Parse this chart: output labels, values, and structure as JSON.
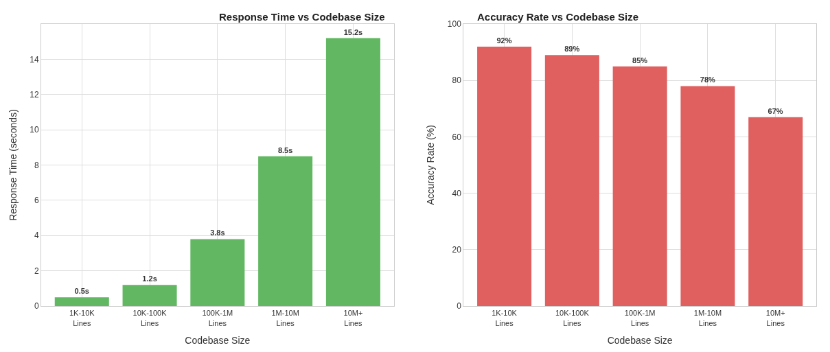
{
  "chart_data": [
    {
      "type": "bar",
      "title": "Response Time vs Codebase Size",
      "xlabel": "Codebase Size",
      "ylabel": "Response Time (seconds)",
      "categories": [
        "1K-10K\nLines",
        "10K-100K\nLines",
        "100K-1M\nLines",
        "1M-10M\nLines",
        "10M+\nLines"
      ],
      "values": [
        0.5,
        1.2,
        3.8,
        8.5,
        15.2
      ],
      "value_labels": [
        "0.5s",
        "1.2s",
        "3.8s",
        "8.5s",
        "15.2s"
      ],
      "color": "#62b862",
      "ylim": [
        0,
        16.0
      ],
      "yticks": [
        0,
        2,
        4,
        6,
        8,
        10,
        12,
        14
      ],
      "grid": true
    },
    {
      "type": "bar",
      "title": "Accuracy Rate vs Codebase Size",
      "xlabel": "Codebase Size",
      "ylabel": "Accuracy Rate (%)",
      "categories": [
        "1K-10K\nLines",
        "10K-100K\nLines",
        "100K-1M\nLines",
        "1M-10M\nLines",
        "10M+\nLines"
      ],
      "values": [
        92,
        89,
        85,
        78,
        67
      ],
      "value_labels": [
        "92%",
        "89%",
        "85%",
        "78%",
        "67%"
      ],
      "color": "#e06060",
      "ylim": [
        0,
        100
      ],
      "yticks": [
        0,
        20,
        40,
        60,
        80,
        100
      ],
      "grid": true
    }
  ]
}
